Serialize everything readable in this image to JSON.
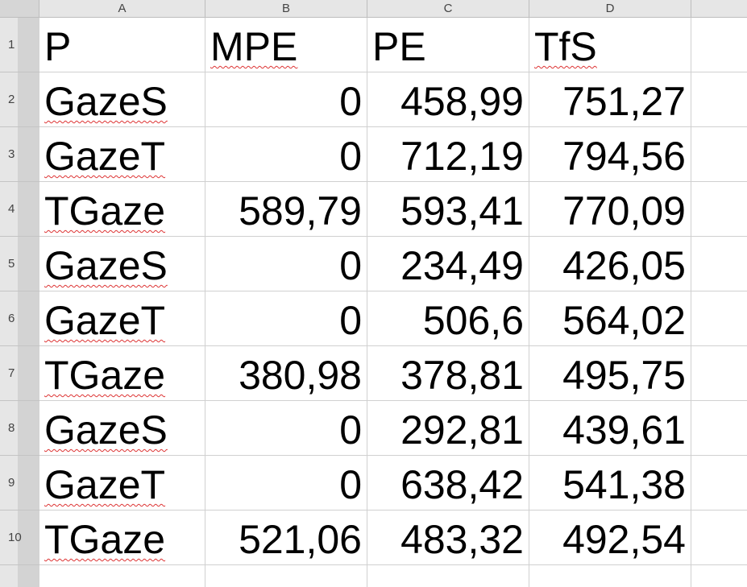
{
  "columns": [
    "A",
    "B",
    "C",
    "D"
  ],
  "row_numbers": [
    "1",
    "2",
    "3",
    "4",
    "5",
    "6",
    "7",
    "8",
    "9",
    "10"
  ],
  "header": {
    "P": "P",
    "MPE": "MPE",
    "PE": "PE",
    "TfS": "TfS"
  },
  "rows": [
    {
      "P": "GazeS",
      "MPE": "0",
      "PE": "458,99",
      "TfS": "751,27"
    },
    {
      "P": "GazeT",
      "MPE": "0",
      "PE": "712,19",
      "TfS": "794,56"
    },
    {
      "P": "TGaze",
      "MPE": "589,79",
      "PE": "593,41",
      "TfS": "770,09"
    },
    {
      "P": "GazeS",
      "MPE": "0",
      "PE": "234,49",
      "TfS": "426,05"
    },
    {
      "P": "GazeT",
      "MPE": "0",
      "PE": "506,6",
      "TfS": "564,02"
    },
    {
      "P": "TGaze",
      "MPE": "380,98",
      "PE": "378,81",
      "TfS": "495,75"
    },
    {
      "P": "GazeS",
      "MPE": "0",
      "PE": "292,81",
      "TfS": "439,61"
    },
    {
      "P": "GazeT",
      "MPE": "0",
      "PE": "638,42",
      "TfS": "541,38"
    },
    {
      "P": "TGaze",
      "MPE": "521,06",
      "PE": "483,32",
      "TfS": "492,54"
    }
  ],
  "colors": {
    "spellcheck_underline": "#d33",
    "header_bg": "#e6e6e6",
    "grid": "#d0d0d0"
  }
}
